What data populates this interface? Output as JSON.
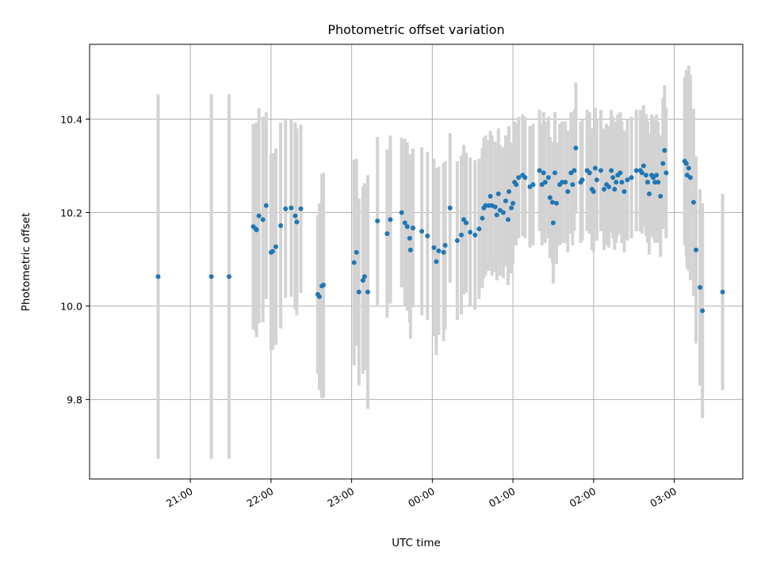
{
  "chart_data": {
    "type": "scatter",
    "title": "Photometric offset variation",
    "xlabel": "UTC time",
    "ylabel": "Photometric offset",
    "x_units": "hours relative to 00:00 UTC",
    "xlim": [
      -4.25,
      3.85
    ],
    "ylim": [
      9.63,
      10.56
    ],
    "grid": true,
    "x_ticks": [
      {
        "value": -3,
        "label": "21:00"
      },
      {
        "value": -2,
        "label": "22:00"
      },
      {
        "value": -1,
        "label": "23:00"
      },
      {
        "value": 0,
        "label": "00:00"
      },
      {
        "value": 1,
        "label": "01:00"
      },
      {
        "value": 2,
        "label": "02:00"
      },
      {
        "value": 3,
        "label": "03:00"
      }
    ],
    "y_ticks": [
      {
        "value": 9.8,
        "label": "9.8"
      },
      {
        "value": 10.0,
        "label": "10.0"
      },
      {
        "value": 10.2,
        "label": "10.2"
      },
      {
        "value": 10.4,
        "label": "10.4"
      }
    ],
    "colors": {
      "point": "#1f77b4",
      "errorbar": "#d3d3d3",
      "grid": "#b0b0b0"
    },
    "series": [
      {
        "points": [
          [
            -3.4,
            10.063,
            0.39
          ],
          [
            -2.74,
            10.063,
            0.39
          ],
          [
            -2.52,
            10.063,
            0.39
          ],
          [
            -2.22,
            10.17,
            0.22
          ],
          [
            -2.19,
            10.165,
            0.22
          ],
          [
            -2.18,
            10.163,
            0.23
          ],
          [
            -2.15,
            10.193,
            0.23
          ],
          [
            -2.1,
            10.185,
            0.22
          ],
          [
            -2.06,
            10.215,
            0.2
          ],
          [
            -2.0,
            10.115,
            0.21
          ],
          [
            -1.98,
            10.117,
            0.21
          ],
          [
            -1.94,
            10.127,
            0.21
          ],
          [
            -1.88,
            10.172,
            0.22
          ],
          [
            -1.82,
            10.208,
            0.19
          ],
          [
            -1.75,
            10.21,
            0.19
          ],
          [
            -1.7,
            10.193,
            0.2
          ],
          [
            -1.68,
            10.18,
            0.2
          ],
          [
            -1.63,
            10.208,
            0.18
          ],
          [
            -1.42,
            10.025,
            0.17
          ],
          [
            -1.4,
            10.02,
            0.2
          ],
          [
            -1.37,
            10.043,
            0.24
          ],
          [
            -1.35,
            10.045,
            0.24
          ],
          [
            -0.97,
            10.093,
            0.22
          ],
          [
            -0.94,
            10.115,
            0.2
          ],
          [
            -0.91,
            10.03,
            0.2
          ],
          [
            -0.86,
            10.055,
            0.2
          ],
          [
            -0.84,
            10.063,
            0.2
          ],
          [
            -0.8,
            10.03,
            0.25
          ],
          [
            -0.68,
            10.182,
            0.18
          ],
          [
            -0.56,
            10.155,
            0.18
          ],
          [
            -0.52,
            10.185,
            0.18
          ],
          [
            -0.38,
            10.2,
            0.16
          ],
          [
            -0.34,
            10.178,
            0.18
          ],
          [
            -0.31,
            10.17,
            0.18
          ],
          [
            -0.28,
            10.145,
            0.18
          ],
          [
            -0.27,
            10.12,
            0.19
          ],
          [
            -0.24,
            10.167,
            0.17
          ],
          [
            -0.13,
            10.16,
            0.18
          ],
          [
            -0.06,
            10.15,
            0.18
          ],
          [
            0.02,
            10.125,
            0.19
          ],
          [
            0.05,
            10.095,
            0.2
          ],
          [
            0.08,
            10.118,
            0.18
          ],
          [
            0.14,
            10.115,
            0.19
          ],
          [
            0.16,
            10.13,
            0.18
          ],
          [
            0.22,
            10.21,
            0.16
          ],
          [
            0.31,
            10.14,
            0.17
          ],
          [
            0.36,
            10.152,
            0.17
          ],
          [
            0.39,
            10.185,
            0.16
          ],
          [
            0.42,
            10.178,
            0.15
          ],
          [
            0.47,
            10.158,
            0.16
          ],
          [
            0.53,
            10.152,
            0.16
          ],
          [
            0.58,
            10.165,
            0.15
          ],
          [
            0.62,
            10.188,
            0.15
          ],
          [
            0.64,
            10.21,
            0.15
          ],
          [
            0.66,
            10.215,
            0.15
          ],
          [
            0.7,
            10.215,
            0.14
          ],
          [
            0.72,
            10.235,
            0.14
          ],
          [
            0.74,
            10.215,
            0.15
          ],
          [
            0.78,
            10.212,
            0.14
          ],
          [
            0.8,
            10.195,
            0.14
          ],
          [
            0.82,
            10.24,
            0.14
          ],
          [
            0.84,
            10.205,
            0.14
          ],
          [
            0.88,
            10.2,
            0.14
          ],
          [
            0.91,
            10.225,
            0.14
          ],
          [
            0.94,
            10.185,
            0.14
          ],
          [
            0.95,
            10.245,
            0.14
          ],
          [
            0.98,
            10.21,
            0.14
          ],
          [
            1.0,
            10.22,
            0.13
          ],
          [
            1.02,
            10.265,
            0.13
          ],
          [
            1.04,
            10.26,
            0.13
          ],
          [
            1.07,
            10.275,
            0.13
          ],
          [
            1.12,
            10.28,
            0.13
          ],
          [
            1.15,
            10.275,
            0.13
          ],
          [
            1.21,
            10.255,
            0.13
          ],
          [
            1.25,
            10.26,
            0.13
          ],
          [
            1.33,
            10.29,
            0.13
          ],
          [
            1.36,
            10.26,
            0.13
          ],
          [
            1.38,
            10.285,
            0.13
          ],
          [
            1.4,
            10.265,
            0.13
          ],
          [
            1.44,
            10.275,
            0.13
          ],
          [
            1.46,
            10.232,
            0.13
          ],
          [
            1.49,
            10.222,
            0.13
          ],
          [
            1.5,
            10.178,
            0.13
          ],
          [
            1.52,
            10.285,
            0.13
          ],
          [
            1.54,
            10.22,
            0.13
          ],
          [
            1.58,
            10.26,
            0.13
          ],
          [
            1.61,
            10.265,
            0.13
          ],
          [
            1.65,
            10.265,
            0.13
          ],
          [
            1.68,
            10.245,
            0.13
          ],
          [
            1.72,
            10.285,
            0.13
          ],
          [
            1.74,
            10.26,
            0.13
          ],
          [
            1.76,
            10.29,
            0.13
          ],
          [
            1.78,
            10.338,
            0.14
          ],
          [
            1.84,
            10.265,
            0.13
          ],
          [
            1.86,
            10.27,
            0.13
          ],
          [
            1.92,
            10.29,
            0.13
          ],
          [
            1.95,
            10.285,
            0.13
          ],
          [
            1.98,
            10.25,
            0.13
          ],
          [
            2.0,
            10.245,
            0.13
          ],
          [
            2.02,
            10.295,
            0.13
          ],
          [
            2.04,
            10.27,
            0.13
          ],
          [
            2.09,
            10.29,
            0.13
          ],
          [
            2.13,
            10.25,
            0.13
          ],
          [
            2.16,
            10.26,
            0.13
          ],
          [
            2.19,
            10.255,
            0.13
          ],
          [
            2.22,
            10.29,
            0.13
          ],
          [
            2.24,
            10.275,
            0.13
          ],
          [
            2.26,
            10.25,
            0.13
          ],
          [
            2.28,
            10.265,
            0.13
          ],
          [
            2.3,
            10.28,
            0.13
          ],
          [
            2.33,
            10.285,
            0.13
          ],
          [
            2.35,
            10.265,
            0.13
          ],
          [
            2.38,
            10.245,
            0.13
          ],
          [
            2.42,
            10.27,
            0.13
          ],
          [
            2.47,
            10.275,
            0.13
          ],
          [
            2.53,
            10.29,
            0.13
          ],
          [
            2.58,
            10.29,
            0.13
          ],
          [
            2.6,
            10.285,
            0.13
          ],
          [
            2.62,
            10.3,
            0.13
          ],
          [
            2.65,
            10.28,
            0.13
          ],
          [
            2.67,
            10.265,
            0.13
          ],
          [
            2.69,
            10.24,
            0.13
          ],
          [
            2.72,
            10.28,
            0.13
          ],
          [
            2.74,
            10.275,
            0.13
          ],
          [
            2.76,
            10.265,
            0.13
          ],
          [
            2.78,
            10.28,
            0.13
          ],
          [
            2.8,
            10.265,
            0.13
          ],
          [
            2.83,
            10.235,
            0.13
          ],
          [
            2.86,
            10.305,
            0.14
          ],
          [
            2.88,
            10.333,
            0.14
          ],
          [
            2.9,
            10.285,
            0.14
          ],
          [
            3.13,
            10.31,
            0.18
          ],
          [
            3.15,
            10.305,
            0.2
          ],
          [
            3.16,
            10.28,
            0.2
          ],
          [
            3.18,
            10.295,
            0.22
          ],
          [
            3.2,
            10.275,
            0.22
          ],
          [
            3.24,
            10.222,
            0.2
          ],
          [
            3.27,
            10.12,
            0.2
          ],
          [
            3.32,
            10.04,
            0.21
          ],
          [
            3.35,
            9.99,
            0.23
          ],
          [
            3.6,
            10.03,
            0.21
          ]
        ]
      }
    ]
  }
}
